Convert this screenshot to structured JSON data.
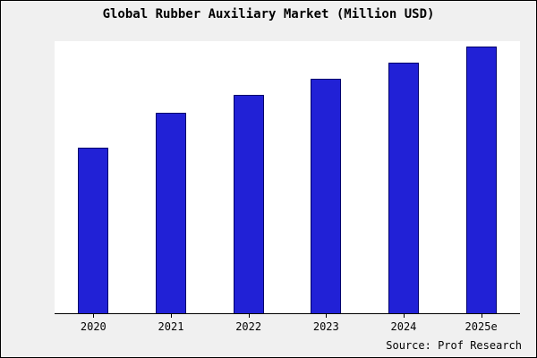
{
  "chart_data": {
    "type": "bar",
    "title": "Global Rubber Auxiliary Market (Million USD)",
    "categories": [
      "2020",
      "2021",
      "2022",
      "2023",
      "2024",
      "2025e"
    ],
    "values": [
      62,
      75,
      82,
      88,
      94,
      100
    ],
    "xlabel": "",
    "ylabel": "",
    "ylim": [
      0,
      102
    ],
    "grid": false,
    "legend": "none",
    "value_note": "relative index estimated from bar heights; no y-axis labels shown",
    "bar_fill_color": "#2121d6",
    "bar_border_color": "#00006b",
    "background_color": "#f0f0f0",
    "plot_background_color": "#ffffff"
  },
  "source": {
    "label": "Source: Prof Research"
  }
}
